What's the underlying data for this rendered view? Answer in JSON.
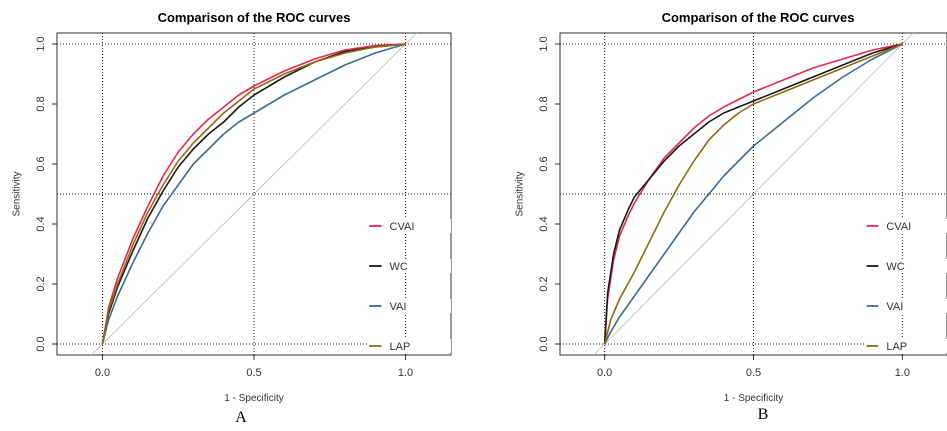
{
  "figure": {
    "panels": [
      {
        "letter": "A"
      },
      {
        "letter": "B"
      }
    ]
  },
  "chart_data": [
    {
      "type": "line",
      "title": "Comparison of the ROC curves",
      "xlabel": "1 - Specificity",
      "ylabel": "Sensitivity",
      "xlim": [
        -0.15,
        1.15
      ],
      "ylim": [
        0,
        1
      ],
      "xticks": [
        "0.0",
        "0.5",
        "1.0"
      ],
      "yticks": [
        "0.0",
        "0.2",
        "0.4",
        "0.6",
        "0.8",
        "1.0"
      ],
      "reference_lines": {
        "x": [
          0,
          0.5,
          1
        ],
        "y": [
          0,
          0.5,
          1
        ]
      },
      "legend": {
        "position": "bottom-right"
      },
      "series": [
        {
          "name": "CVAI",
          "color": "#e8274b",
          "x": [
            0,
            0.02,
            0.05,
            0.1,
            0.15,
            0.2,
            0.25,
            0.3,
            0.35,
            0.4,
            0.45,
            0.5,
            0.6,
            0.7,
            0.8,
            0.9,
            1.0
          ],
          "y": [
            0,
            0.12,
            0.22,
            0.35,
            0.46,
            0.56,
            0.64,
            0.7,
            0.75,
            0.79,
            0.83,
            0.86,
            0.91,
            0.95,
            0.98,
            0.995,
            1.0
          ]
        },
        {
          "name": "WC",
          "color": "#1a1a1a",
          "x": [
            0,
            0.02,
            0.05,
            0.1,
            0.15,
            0.2,
            0.25,
            0.3,
            0.35,
            0.4,
            0.45,
            0.5,
            0.6,
            0.7,
            0.8,
            0.9,
            1.0
          ],
          "y": [
            0,
            0.1,
            0.19,
            0.31,
            0.42,
            0.51,
            0.59,
            0.65,
            0.7,
            0.74,
            0.79,
            0.83,
            0.89,
            0.94,
            0.975,
            0.99,
            1.0
          ]
        },
        {
          "name": "VAI",
          "color": "#3e6b93",
          "x": [
            0,
            0.02,
            0.05,
            0.1,
            0.15,
            0.2,
            0.25,
            0.3,
            0.35,
            0.4,
            0.45,
            0.5,
            0.6,
            0.7,
            0.8,
            0.9,
            1.0
          ],
          "y": [
            0,
            0.08,
            0.16,
            0.27,
            0.37,
            0.46,
            0.53,
            0.6,
            0.65,
            0.7,
            0.74,
            0.77,
            0.83,
            0.88,
            0.93,
            0.97,
            1.0
          ]
        },
        {
          "name": "LAP",
          "color": "#8f6b14",
          "x": [
            0,
            0.02,
            0.05,
            0.1,
            0.15,
            0.2,
            0.25,
            0.3,
            0.35,
            0.4,
            0.45,
            0.5,
            0.6,
            0.7,
            0.8,
            0.9,
            1.0
          ],
          "y": [
            0,
            0.11,
            0.2,
            0.33,
            0.44,
            0.53,
            0.61,
            0.67,
            0.72,
            0.77,
            0.81,
            0.85,
            0.9,
            0.94,
            0.97,
            0.99,
            1.0
          ]
        }
      ]
    },
    {
      "type": "line",
      "title": "Comparison of the ROC curves",
      "xlabel": "1 - Specificity",
      "ylabel": "Sensitivity",
      "xlim": [
        -0.15,
        1.15
      ],
      "ylim": [
        0,
        1
      ],
      "xticks": [
        "0.0",
        "0.5",
        "1.0"
      ],
      "yticks": [
        "0.0",
        "0.2",
        "0.4",
        "0.6",
        "0.8",
        "1.0"
      ],
      "reference_lines": {
        "x": [
          0,
          0.5,
          1
        ],
        "y": [
          0,
          0.5,
          1
        ]
      },
      "legend": {
        "position": "bottom-right"
      },
      "series": [
        {
          "name": "CVAI",
          "color": "#e8274b",
          "x": [
            0,
            0.01,
            0.03,
            0.05,
            0.08,
            0.1,
            0.15,
            0.2,
            0.25,
            0.3,
            0.35,
            0.4,
            0.5,
            0.6,
            0.7,
            0.8,
            0.9,
            1.0
          ],
          "y": [
            0,
            0.15,
            0.28,
            0.36,
            0.43,
            0.47,
            0.55,
            0.62,
            0.67,
            0.72,
            0.76,
            0.79,
            0.84,
            0.88,
            0.92,
            0.95,
            0.98,
            1.0
          ]
        },
        {
          "name": "WC",
          "color": "#1a1a1a",
          "x": [
            0,
            0.01,
            0.03,
            0.05,
            0.08,
            0.1,
            0.15,
            0.2,
            0.25,
            0.3,
            0.35,
            0.4,
            0.5,
            0.6,
            0.7,
            0.8,
            0.9,
            1.0
          ],
          "y": [
            0,
            0.17,
            0.3,
            0.38,
            0.45,
            0.49,
            0.55,
            0.61,
            0.66,
            0.7,
            0.74,
            0.77,
            0.81,
            0.85,
            0.89,
            0.93,
            0.97,
            1.0
          ]
        },
        {
          "name": "VAI",
          "color": "#3e6b93",
          "x": [
            0,
            0.02,
            0.05,
            0.1,
            0.15,
            0.2,
            0.25,
            0.3,
            0.35,
            0.4,
            0.45,
            0.5,
            0.6,
            0.7,
            0.8,
            0.9,
            1.0
          ],
          "y": [
            0,
            0.04,
            0.09,
            0.16,
            0.23,
            0.3,
            0.37,
            0.44,
            0.5,
            0.56,
            0.61,
            0.66,
            0.74,
            0.82,
            0.89,
            0.95,
            1.0
          ]
        },
        {
          "name": "LAP",
          "color": "#8f6b14",
          "x": [
            0,
            0.02,
            0.05,
            0.1,
            0.15,
            0.2,
            0.25,
            0.3,
            0.35,
            0.4,
            0.45,
            0.5,
            0.6,
            0.7,
            0.8,
            0.9,
            1.0
          ],
          "y": [
            0,
            0.08,
            0.15,
            0.24,
            0.34,
            0.44,
            0.53,
            0.61,
            0.68,
            0.73,
            0.77,
            0.8,
            0.84,
            0.88,
            0.92,
            0.96,
            1.0
          ]
        }
      ]
    }
  ]
}
